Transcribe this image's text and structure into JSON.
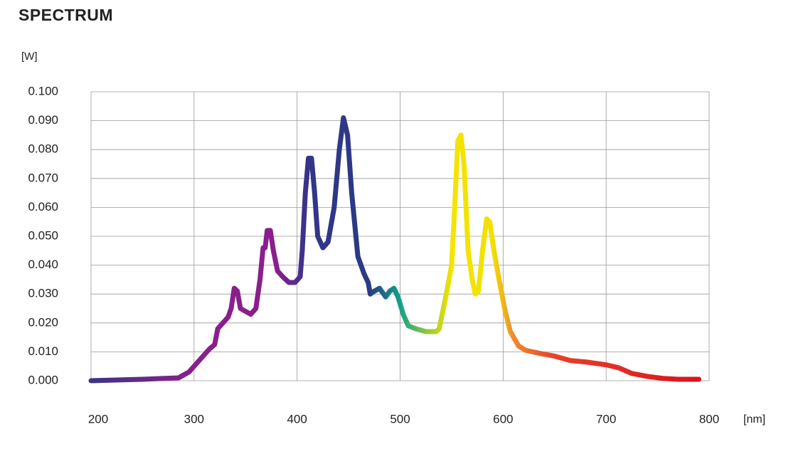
{
  "chart_data": {
    "type": "line",
    "title": "SPECTRUM",
    "y_label": "[W]",
    "x_label": "[nm]",
    "x": [
      200,
      250,
      285,
      295,
      305,
      315,
      320,
      323,
      328,
      333,
      336,
      339,
      342,
      345,
      350,
      355,
      360,
      364,
      367,
      369,
      371,
      374,
      377,
      381,
      386,
      392,
      398,
      403,
      405,
      408,
      411,
      414,
      417,
      420,
      425,
      430,
      436,
      441,
      445,
      449,
      453,
      459,
      465,
      469,
      471,
      475,
      480,
      486,
      490,
      494,
      498,
      503,
      508,
      515,
      525,
      535,
      538,
      542,
      546,
      550,
      553,
      556,
      559,
      562,
      566,
      570,
      573,
      576,
      580,
      584,
      587,
      591,
      596,
      602,
      607,
      615,
      622,
      635,
      650,
      665,
      680,
      700,
      712,
      725,
      740,
      755,
      770,
      790
    ],
    "values": [
      0,
      0.0005,
      0.001,
      0.003,
      0.007,
      0.011,
      0.0125,
      0.018,
      0.02,
      0.022,
      0.025,
      0.032,
      0.031,
      0.025,
      0.024,
      0.023,
      0.025,
      0.035,
      0.046,
      0.046,
      0.052,
      0.052,
      0.045,
      0.038,
      0.036,
      0.034,
      0.034,
      0.036,
      0.045,
      0.065,
      0.077,
      0.077,
      0.065,
      0.05,
      0.046,
      0.048,
      0.06,
      0.08,
      0.091,
      0.085,
      0.065,
      0.043,
      0.037,
      0.034,
      0.03,
      0.031,
      0.032,
      0.029,
      0.031,
      0.032,
      0.029,
      0.023,
      0.019,
      0.018,
      0.017,
      0.017,
      0.018,
      0.025,
      0.032,
      0.04,
      0.06,
      0.083,
      0.085,
      0.075,
      0.045,
      0.035,
      0.03,
      0.031,
      0.045,
      0.056,
      0.055,
      0.045,
      0.035,
      0.024,
      0.017,
      0.012,
      0.0105,
      0.0095,
      0.0085,
      0.007,
      0.0065,
      0.0055,
      0.0045,
      0.0025,
      0.0015,
      0.0008,
      0.0005,
      0.0005
    ],
    "color_stops": [
      {
        "x": 200,
        "color": "#3b3585"
      },
      {
        "x": 300,
        "color": "#8a1f8c"
      },
      {
        "x": 380,
        "color": "#8a1f8c"
      },
      {
        "x": 410,
        "color": "#33358a"
      },
      {
        "x": 470,
        "color": "#2a3a84"
      },
      {
        "x": 500,
        "color": "#13a08a"
      },
      {
        "x": 525,
        "color": "#8cc63f"
      },
      {
        "x": 550,
        "color": "#f5e400"
      },
      {
        "x": 590,
        "color": "#f2e000"
      },
      {
        "x": 610,
        "color": "#f08a2e"
      },
      {
        "x": 650,
        "color": "#e8402a"
      },
      {
        "x": 790,
        "color": "#d8141c"
      }
    ],
    "line_width": 7,
    "xlim": [
      200,
      800
    ],
    "xticks": [
      200,
      300,
      400,
      500,
      600,
      700,
      800
    ],
    "ylim": [
      0,
      0.1
    ],
    "yticks": [
      {
        "value": 0,
        "label": "0.000"
      },
      {
        "value": 0.01,
        "label": "0.010"
      },
      {
        "value": 0.02,
        "label": "0.020"
      },
      {
        "value": 0.03,
        "label": "0.030"
      },
      {
        "value": 0.04,
        "label": "0.040"
      },
      {
        "value": 0.05,
        "label": "0.050"
      },
      {
        "value": 0.06,
        "label": "0.060"
      },
      {
        "value": 0.07,
        "label": "0.070"
      },
      {
        "value": 0.08,
        "label": "0.080"
      },
      {
        "value": 0.09,
        "label": "0.090"
      },
      {
        "value": 0.1,
        "label": "0.100"
      }
    ],
    "grid": true
  }
}
